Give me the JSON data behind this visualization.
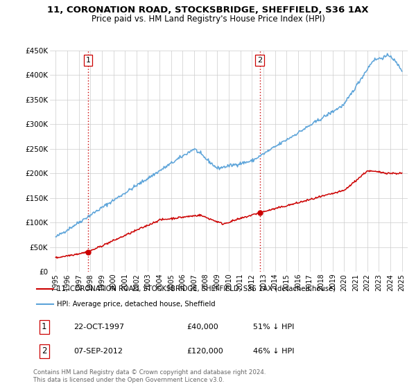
{
  "title": "11, CORONATION ROAD, STOCKSBRIDGE, SHEFFIELD, S36 1AX",
  "subtitle": "Price paid vs. HM Land Registry's House Price Index (HPI)",
  "ylim": [
    0,
    450000
  ],
  "yticks": [
    0,
    50000,
    100000,
    150000,
    200000,
    250000,
    300000,
    350000,
    400000,
    450000
  ],
  "ytick_labels": [
    "£0",
    "£50K",
    "£100K",
    "£150K",
    "£200K",
    "£250K",
    "£300K",
    "£350K",
    "£400K",
    "£450K"
  ],
  "hpi_color": "#5ba3d9",
  "price_color": "#cc0000",
  "dashed_line_color": "#cc0000",
  "sale1_date": "22-OCT-1997",
  "sale1_price": 40000,
  "sale1_hpi_pct": "51% ↓ HPI",
  "sale1_x": 1997.81,
  "sale2_date": "07-SEP-2012",
  "sale2_price": 120000,
  "sale2_hpi_pct": "46% ↓ HPI",
  "sale2_x": 2012.69,
  "legend_line1": "11, CORONATION ROAD, STOCKSBRIDGE, SHEFFIELD, S36 1AX (detached house)",
  "legend_line2": "HPI: Average price, detached house, Sheffield",
  "footer": "Contains HM Land Registry data © Crown copyright and database right 2024.\nThis data is licensed under the Open Government Licence v3.0.",
  "xlim_left": 1994.5,
  "xlim_right": 2025.5,
  "xticks": [
    1995,
    1996,
    1997,
    1998,
    1999,
    2000,
    2001,
    2002,
    2003,
    2004,
    2005,
    2006,
    2007,
    2008,
    2009,
    2010,
    2011,
    2012,
    2013,
    2014,
    2015,
    2016,
    2017,
    2018,
    2019,
    2020,
    2021,
    2022,
    2023,
    2024,
    2025
  ]
}
